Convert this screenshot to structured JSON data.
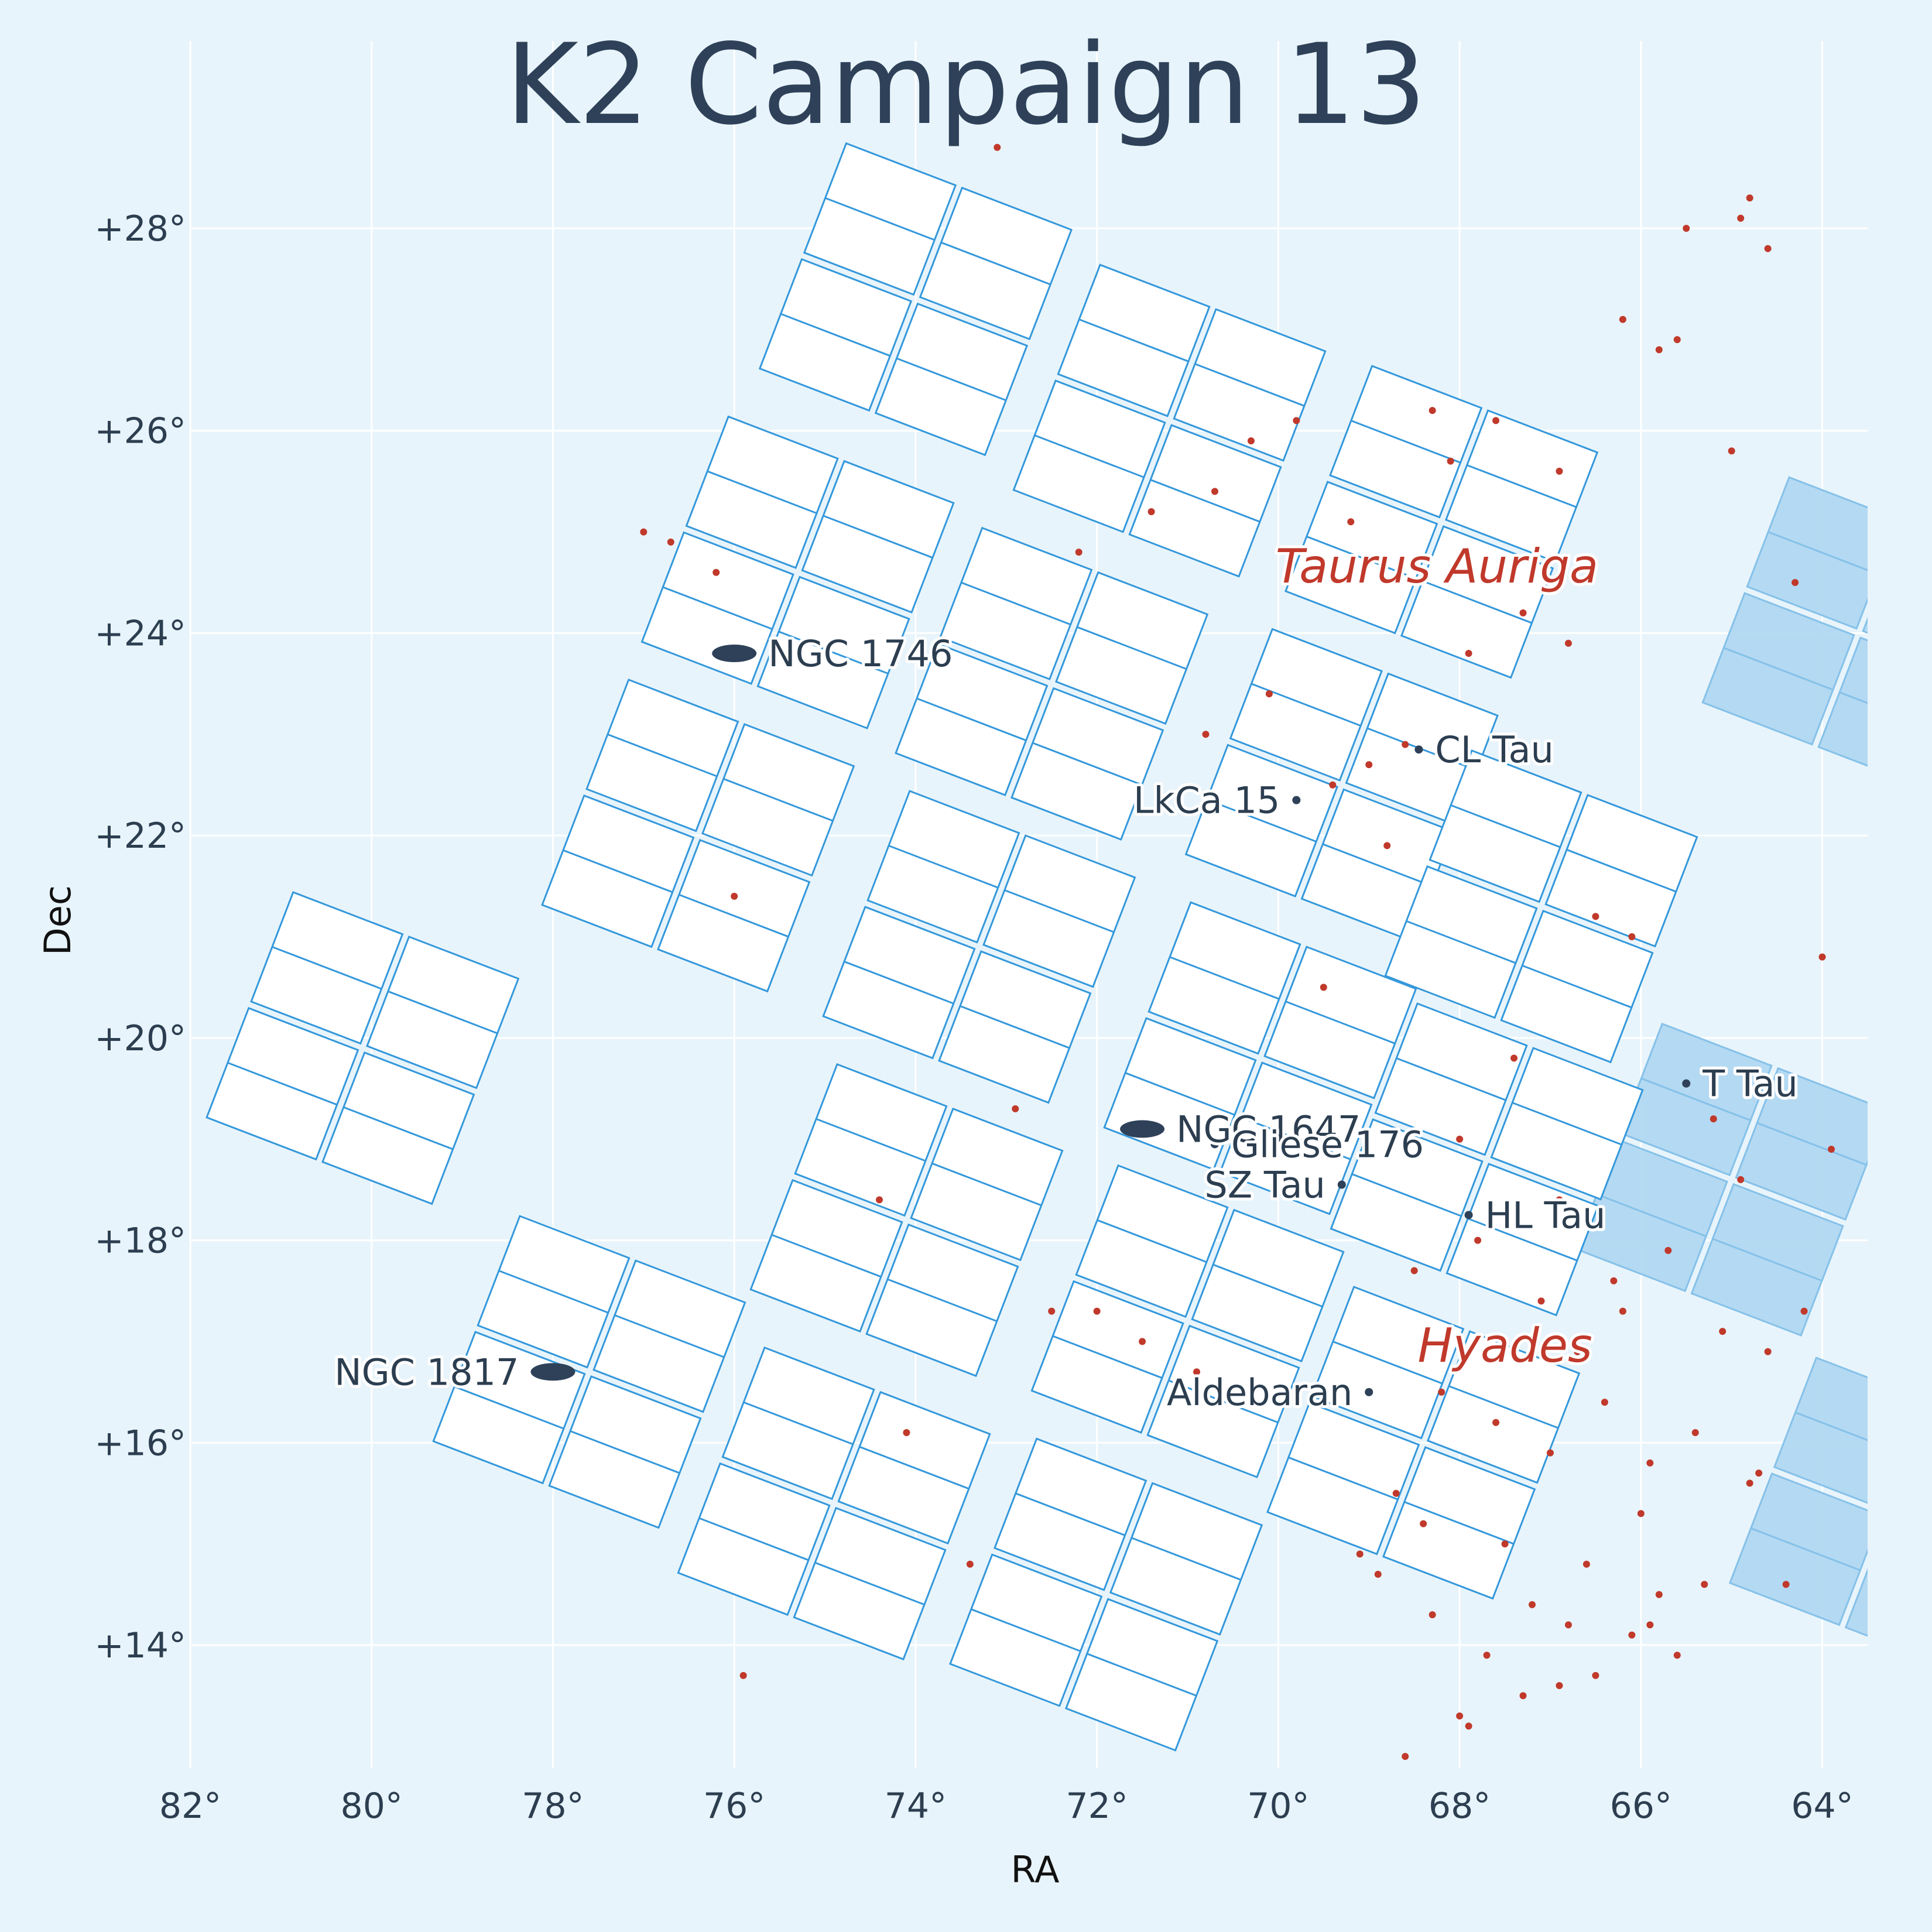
{
  "colors": {
    "background": "#e8f4fb",
    "grid": "#ffffff",
    "ccd_fill": "#ffffff",
    "ccd_edge": "#3498db",
    "neighbor_fill": "#aed6f1",
    "star": "#c0392b",
    "object": "#2e4159",
    "region_label": "#c0392b",
    "text": "#2c3e50"
  },
  "chart_data": {
    "type": "scatter",
    "title": "K2 Campaign 13",
    "xlabel": "RA",
    "ylabel": "Dec",
    "xlim": [
      82,
      63.5
    ],
    "ylim": [
      12.4,
      29.8
    ],
    "x_ticks": [
      82,
      80,
      78,
      76,
      74,
      72,
      70,
      68,
      66,
      64
    ],
    "x_tick_labels": [
      "82°",
      "80°",
      "78°",
      "76°",
      "74°",
      "72°",
      "70°",
      "68°",
      "66°",
      "64°"
    ],
    "y_ticks": [
      14,
      16,
      18,
      20,
      22,
      24,
      26,
      28
    ],
    "y_tick_labels": [
      "+14°",
      "+16°",
      "+18°",
      "+20°",
      "+22°",
      "+24°",
      "+26°",
      "+28°"
    ],
    "grid": true,
    "field": {
      "description_free": true,
      "modules": [
        {
          "ra": 74.0,
          "dec": 27.3
        },
        {
          "ra": 71.2,
          "dec": 26.1
        },
        {
          "ra": 68.2,
          "dec": 25.1
        },
        {
          "ra": 75.3,
          "dec": 24.6
        },
        {
          "ra": 72.5,
          "dec": 23.5
        },
        {
          "ra": 69.3,
          "dec": 22.5
        },
        {
          "ra": 76.4,
          "dec": 22.0
        },
        {
          "ra": 73.3,
          "dec": 20.9
        },
        {
          "ra": 70.2,
          "dec": 19.8
        },
        {
          "ra": 67.1,
          "dec": 21.3
        },
        {
          "ra": 80.1,
          "dec": 19.9
        },
        {
          "ra": 74.1,
          "dec": 18.2
        },
        {
          "ra": 71.0,
          "dec": 17.2
        },
        {
          "ra": 67.7,
          "dec": 18.8
        },
        {
          "ra": 77.6,
          "dec": 16.7
        },
        {
          "ra": 74.9,
          "dec": 15.4
        },
        {
          "ra": 71.9,
          "dec": 14.5
        },
        {
          "ra": 68.4,
          "dec": 16.0
        }
      ],
      "neighbor_modules": [
        {
          "ra": 63.6,
          "dec": 24.0
        },
        {
          "ra": 65.0,
          "dec": 18.6
        },
        {
          "ra": 63.3,
          "dec": 15.3
        }
      ]
    },
    "objects": [
      {
        "name": "NGC 1746",
        "ra": 76.0,
        "dec": 23.8,
        "kind": "cluster",
        "label_side": "right"
      },
      {
        "name": "NGC 1647",
        "ra": 71.5,
        "dec": 19.1,
        "kind": "cluster",
        "label_side": "right"
      },
      {
        "name": "NGC 1817",
        "ra": 78.0,
        "dec": 16.7,
        "kind": "cluster",
        "label_side": "left"
      },
      {
        "name": "CL Tau",
        "ra": 68.45,
        "dec": 22.85,
        "kind": "star",
        "label_side": "right"
      },
      {
        "name": "LkCa 15",
        "ra": 69.8,
        "dec": 22.35,
        "kind": "star",
        "label_side": "left"
      },
      {
        "name": "T Tau",
        "ra": 65.5,
        "dec": 19.55,
        "kind": "star",
        "label_side": "right"
      },
      {
        "name": "Gliese 176",
        "ra": 70.7,
        "dec": 18.95,
        "kind": "star",
        "label_side": "right"
      },
      {
        "name": "SZ Tau",
        "ra": 69.3,
        "dec": 18.55,
        "kind": "star",
        "label_side": "left"
      },
      {
        "name": "HL Tau",
        "ra": 67.9,
        "dec": 18.25,
        "kind": "star",
        "label_side": "right"
      },
      {
        "name": "Aldebaran",
        "ra": 69.0,
        "dec": 16.5,
        "kind": "star",
        "label_side": "left"
      }
    ],
    "regions": [
      {
        "name": "Taurus Auriga",
        "ra": 68.25,
        "dec": 24.5
      },
      {
        "name": "Hyades",
        "ra": 67.5,
        "dec": 16.8
      }
    ],
    "stars_ra": [
      66.2,
      64.8,
      65.5,
      64.6,
      64.9,
      65.8,
      67.6,
      68.3,
      66.9,
      68.1,
      69.2,
      70.3,
      70.7,
      69.8,
      71.4,
      67.3,
      65.0,
      64.3,
      66.8,
      65.6,
      67.9,
      68.6,
      69.4,
      70.1,
      70.8,
      69.0,
      68.8,
      69.5,
      66.5,
      66.1,
      64.0,
      65.2,
      64.9,
      63.9,
      68.0,
      67.4,
      66.9,
      66.3,
      67.8,
      68.5,
      67.1,
      66.7,
      66.2,
      65.7,
      65.1,
      64.6,
      64.2,
      68.2,
      67.6,
      67.0,
      66.4,
      65.9,
      65.4,
      64.8,
      68.7,
      68.4,
      67.5,
      66.6,
      66.0,
      65.3,
      67.2,
      66.8,
      65.8,
      64.7,
      69.1,
      68.9,
      68.3,
      67.7,
      66.5,
      68.0,
      67.3,
      66.1,
      65.6,
      68.6,
      67.9,
      66.9,
      65.9,
      64.4,
      73.1,
      72.2,
      72.9,
      72.5,
      74.1,
      73.4,
      75.9,
      74.4,
      76.0,
      72.0,
      71.5,
      70.9,
      76.7,
      77.0,
      76.2
    ],
    "stars_dec": [
      27.1,
      28.3,
      28.0,
      27.8,
      28.1,
      26.8,
      26.1,
      26.2,
      25.6,
      25.7,
      25.1,
      25.9,
      25.4,
      26.1,
      25.2,
      24.2,
      25.8,
      24.5,
      23.9,
      26.9,
      23.8,
      22.9,
      22.5,
      23.4,
      23.0,
      22.7,
      21.9,
      20.5,
      21.2,
      21.0,
      20.8,
      19.2,
      18.6,
      18.9,
      19.0,
      19.8,
      18.4,
      17.6,
      18.0,
      17.7,
      17.4,
      16.9,
      17.3,
      17.9,
      17.1,
      16.9,
      17.3,
      16.5,
      16.2,
      15.9,
      16.4,
      15.8,
      16.1,
      15.6,
      15.5,
      15.2,
      15.0,
      14.8,
      15.3,
      14.6,
      14.4,
      14.2,
      14.5,
      15.7,
      14.9,
      14.7,
      14.3,
      13.9,
      13.7,
      13.3,
      13.5,
      14.1,
      13.9,
      12.9,
      13.2,
      13.6,
      14.2,
      14.6,
      28.8,
      24.8,
      19.3,
      17.3,
      16.1,
      14.8,
      13.7,
      18.4,
      21.4,
      17.3,
      17.0,
      16.7,
      24.9,
      25.0,
      24.6
    ]
  }
}
